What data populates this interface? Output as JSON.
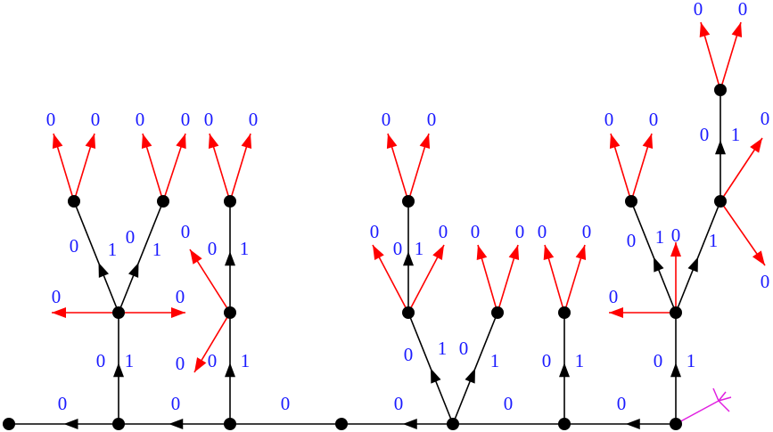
{
  "labels": [
    "0",
    "0",
    "0",
    "0",
    "0",
    "0",
    "0",
    "1",
    "0",
    "0",
    "0",
    "1",
    "0",
    "1",
    "0",
    "0",
    "0",
    "0",
    "0",
    "1",
    "0",
    "0",
    "0",
    "1",
    "0",
    "0",
    "0",
    "1",
    "0",
    "1",
    "0",
    "0",
    "1",
    "0",
    "0",
    "0",
    "0",
    "0",
    "0",
    "1",
    "0",
    "0",
    "0",
    "1",
    "0",
    "0",
    "0",
    "1",
    "1",
    "0",
    "0",
    "0",
    "0",
    "0",
    "1",
    "0",
    "0"
  ]
}
